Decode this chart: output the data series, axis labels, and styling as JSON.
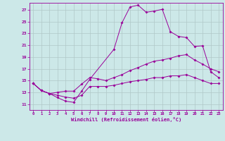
{
  "xlabel": "Windchill (Refroidissement éolien,°C)",
  "background_color": "#cce8e8",
  "grid_color": "#b0c8c8",
  "line_color": "#990099",
  "x_ticks": [
    0,
    1,
    2,
    3,
    4,
    5,
    6,
    7,
    8,
    9,
    10,
    11,
    12,
    13,
    14,
    15,
    16,
    17,
    18,
    19,
    20,
    21,
    22,
    23
  ],
  "y_ticks": [
    11,
    13,
    15,
    17,
    19,
    21,
    23,
    25,
    27
  ],
  "xlim": [
    -0.5,
    23.5
  ],
  "ylim": [
    10.0,
    28.2
  ],
  "line1_x": [
    0,
    1,
    2,
    3,
    4,
    5,
    6,
    7,
    10,
    11,
    12,
    13,
    14,
    15,
    16,
    17,
    18,
    19,
    20,
    21,
    22,
    23
  ],
  "line1_y": [
    14.5,
    13.3,
    12.8,
    12.1,
    11.5,
    11.3,
    13.2,
    15.2,
    20.3,
    24.8,
    27.5,
    27.8,
    26.6,
    26.8,
    27.1,
    23.3,
    22.5,
    22.3,
    20.8,
    20.9,
    16.5,
    15.5
  ],
  "line2_x": [
    0,
    1,
    2,
    3,
    4,
    5,
    6,
    7,
    8,
    9,
    10,
    11,
    12,
    13,
    14,
    15,
    16,
    17,
    18,
    19,
    20,
    21,
    22,
    23
  ],
  "line2_y": [
    14.5,
    13.3,
    12.8,
    13.0,
    13.2,
    13.2,
    14.4,
    15.5,
    15.3,
    15.0,
    15.5,
    16.0,
    16.7,
    17.2,
    17.8,
    18.3,
    18.5,
    18.8,
    19.2,
    19.4,
    18.5,
    17.8,
    17.0,
    16.5
  ],
  "line3_x": [
    0,
    1,
    2,
    3,
    4,
    5,
    6,
    7,
    8,
    9,
    10,
    11,
    12,
    13,
    14,
    15,
    16,
    17,
    18,
    19,
    20,
    21,
    22,
    23
  ],
  "line3_y": [
    14.5,
    13.3,
    12.8,
    12.5,
    12.2,
    12.0,
    12.5,
    14.0,
    14.0,
    14.0,
    14.2,
    14.5,
    14.8,
    15.0,
    15.2,
    15.5,
    15.5,
    15.8,
    15.8,
    16.0,
    15.5,
    15.0,
    14.5,
    14.5
  ]
}
